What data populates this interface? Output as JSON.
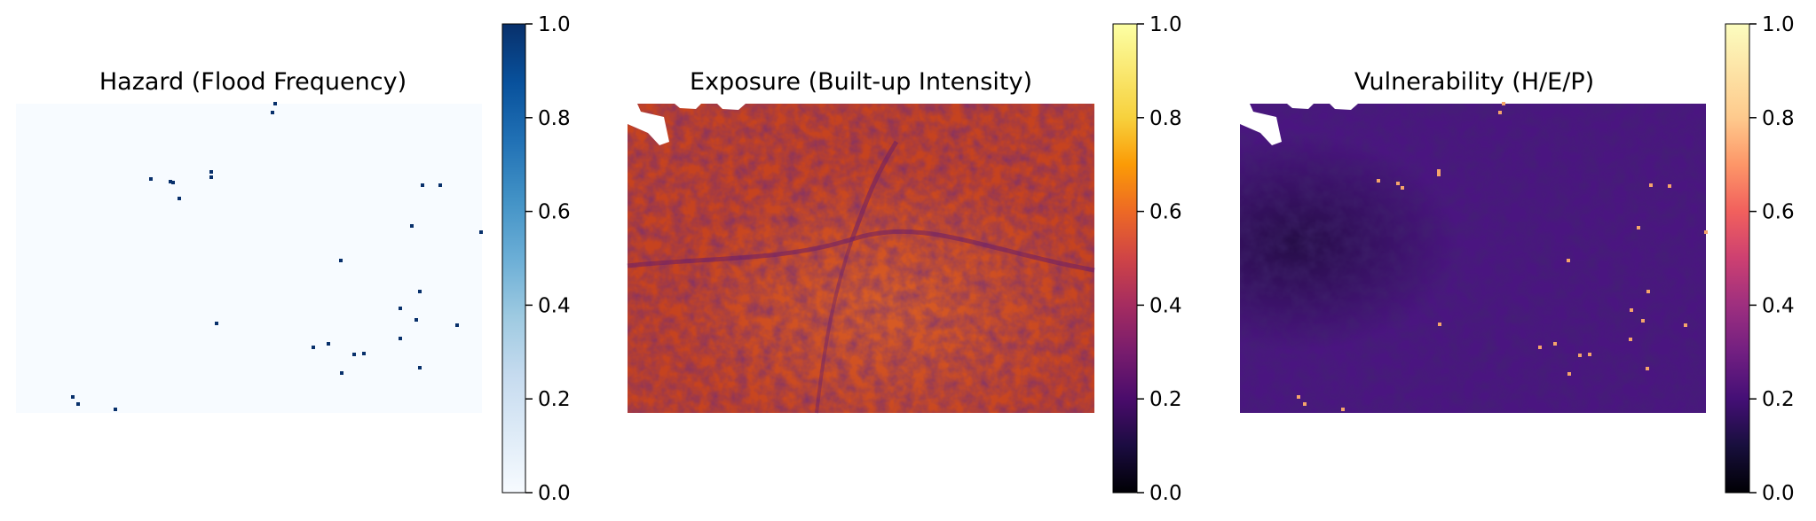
{
  "chart_data": [
    {
      "type": "heatmap",
      "title": "Hazard (Flood Frequency)",
      "colormap": "Blues",
      "colorbar": {
        "min": 0.0,
        "max": 1.0,
        "ticks": [
          "0.0",
          "0.2",
          "0.4",
          "0.6",
          "0.8",
          "1.0"
        ]
      },
      "background_value": 0.0,
      "hotspot_value": 1.0,
      "grid": false,
      "axes": "off"
    },
    {
      "type": "heatmap",
      "title": "Exposure (Built-up Intensity)",
      "colormap": "inferno",
      "colorbar": {
        "min": 0.0,
        "max": 1.0,
        "ticks": [
          "0.0",
          "0.2",
          "0.4",
          "0.6",
          "0.8",
          "1.0"
        ]
      },
      "typical_value_range": [
        0.45,
        0.65
      ],
      "grid": false,
      "axes": "off"
    },
    {
      "type": "heatmap",
      "title": "Vulnerability (H/E/P)",
      "colormap": "magma",
      "colorbar": {
        "min": 0.0,
        "max": 1.0,
        "ticks": [
          "0.0",
          "0.2",
          "0.4",
          "0.6",
          "0.8",
          "1.0"
        ]
      },
      "typical_value_range": [
        0.22,
        0.3
      ],
      "hotspot_value": 0.7,
      "grid": false,
      "axes": "off"
    }
  ],
  "colors": {
    "blues_low": "#f7fbff",
    "blues_high": "#08306b",
    "inferno_mid": "#c6431f",
    "magma_mid": "#4a1580"
  }
}
